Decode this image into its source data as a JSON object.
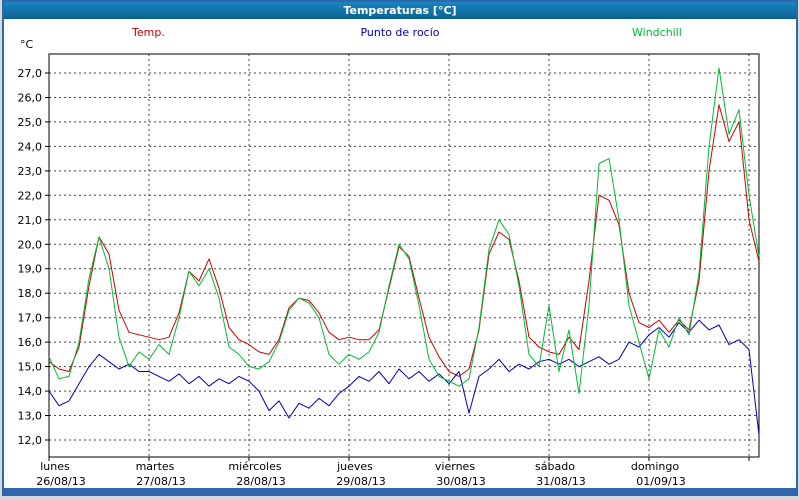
{
  "window": {
    "title": "Temperaturas [°C]"
  },
  "colors": {
    "frame": "#2f66ad",
    "titlebar_light": "#1b86c2",
    "titlebar_dark": "#0a628f",
    "grid": "#444444",
    "axis": "#000000"
  },
  "chart_data": {
    "type": "line",
    "title": "Temperaturas [°C]",
    "xlabel": "",
    "ylabel": "°C",
    "y_min": 12,
    "y_max": 27,
    "y_tick_step": 1,
    "y_tick_format": "comma-decimal",
    "grid": "dashed",
    "legend_position": "top",
    "x_axis": {
      "t_step_days": 0.1,
      "days": [
        {
          "name": "lunes",
          "date": "26/08/13"
        },
        {
          "name": "martes",
          "date": "27/08/13"
        },
        {
          "name": "miércoles",
          "date": "28/08/13"
        },
        {
          "name": "jueves",
          "date": "29/08/13"
        },
        {
          "name": "viernes",
          "date": "30/08/13"
        },
        {
          "name": "sábado",
          "date": "31/08/13"
        },
        {
          "name": "domingo",
          "date": "01/09/13"
        }
      ]
    },
    "series": [
      {
        "name": "Temp.",
        "color": "#cc0000",
        "values": [
          15.2,
          14.9,
          14.8,
          15.8,
          18.3,
          20.3,
          19.6,
          17.3,
          16.4,
          16.3,
          16.2,
          16.1,
          16.2,
          17.2,
          18.9,
          18.5,
          19.4,
          18.2,
          16.6,
          16.1,
          15.9,
          15.6,
          15.5,
          16.1,
          17.4,
          17.8,
          17.7,
          17.2,
          16.4,
          16.1,
          16.2,
          16.1,
          16.1,
          16.5,
          18.2,
          19.9,
          19.5,
          17.8,
          16.2,
          15.4,
          14.8,
          14.6,
          14.9,
          16.5,
          19.6,
          20.5,
          20.2,
          18.5,
          16.2,
          15.8,
          15.6,
          15.5,
          16.2,
          15.7,
          18.5,
          22.0,
          21.8,
          20.8,
          18.0,
          16.8,
          16.6,
          16.9,
          16.4,
          16.9,
          16.5,
          18.5,
          23.0,
          25.7,
          24.2,
          25.0,
          21.0,
          19.3
        ]
      },
      {
        "name": "Punto de rocío",
        "color": "#0000bb",
        "values": [
          14.0,
          13.4,
          13.6,
          14.3,
          15.0,
          15.5,
          15.2,
          14.9,
          15.1,
          14.8,
          14.8,
          14.6,
          14.4,
          14.7,
          14.3,
          14.6,
          14.2,
          14.5,
          14.3,
          14.6,
          14.4,
          14.0,
          13.2,
          13.6,
          12.9,
          13.5,
          13.3,
          13.7,
          13.4,
          13.9,
          14.2,
          14.6,
          14.4,
          14.8,
          14.3,
          14.9,
          14.5,
          14.8,
          14.4,
          14.7,
          14.3,
          14.8,
          13.1,
          14.6,
          14.9,
          15.3,
          14.8,
          15.1,
          14.9,
          15.2,
          15.3,
          15.1,
          15.3,
          15.0,
          15.2,
          15.4,
          15.1,
          15.3,
          16.0,
          15.8,
          16.3,
          16.6,
          16.2,
          16.8,
          16.4,
          16.9,
          16.5,
          16.7,
          15.9,
          16.1,
          15.7,
          12.2
        ]
      },
      {
        "name": "Windchill",
        "color": "#00bb33",
        "values": [
          15.4,
          14.5,
          14.6,
          16.0,
          18.6,
          20.3,
          19.0,
          16.2,
          15.0,
          15.6,
          15.3,
          15.9,
          15.5,
          17.0,
          18.9,
          18.3,
          19.0,
          17.8,
          15.8,
          15.5,
          15.0,
          14.9,
          15.2,
          16.0,
          17.3,
          17.8,
          17.6,
          17.0,
          15.5,
          15.1,
          15.5,
          15.3,
          15.6,
          16.4,
          18.3,
          20.0,
          19.4,
          17.5,
          15.3,
          14.6,
          14.4,
          14.2,
          14.5,
          16.6,
          19.8,
          21.0,
          20.4,
          18.3,
          15.5,
          15.0,
          17.5,
          14.8,
          16.5,
          13.9,
          17.5,
          23.3,
          23.5,
          21.0,
          17.5,
          16.0,
          14.5,
          16.5,
          15.8,
          17.0,
          16.3,
          18.8,
          24.0,
          27.2,
          24.5,
          25.5,
          22.0,
          19.5
        ]
      }
    ]
  }
}
